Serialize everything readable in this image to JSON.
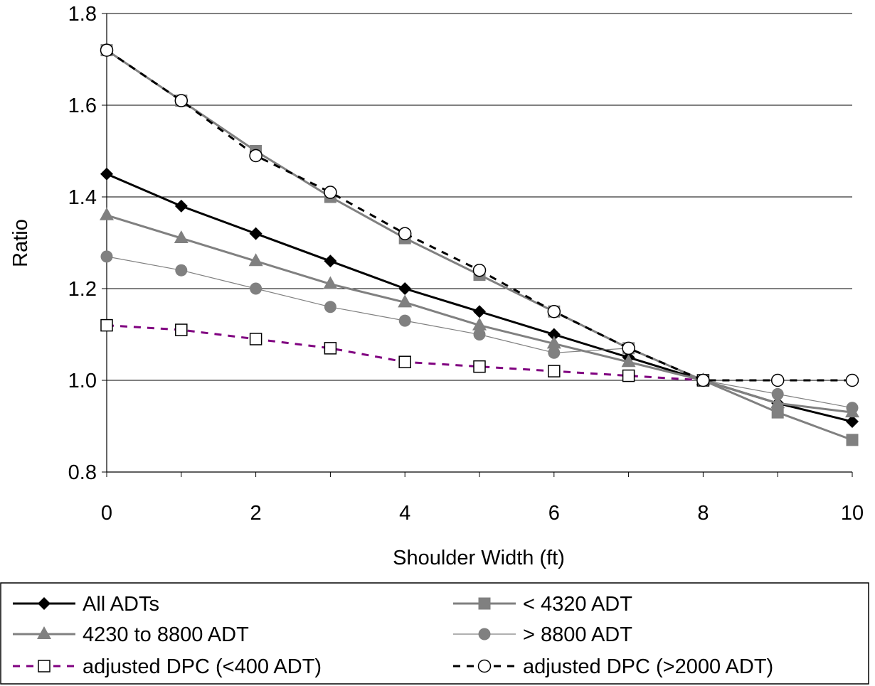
{
  "chart_data": {
    "type": "line",
    "xlabel": "Shoulder Width (ft)",
    "ylabel": "Ratio",
    "xlim": [
      0,
      10
    ],
    "ylim": [
      0.8,
      1.8
    ],
    "x_ticks": [
      "0",
      "2",
      "4",
      "6",
      "8",
      "10"
    ],
    "y_ticks": [
      "0.8",
      "1.0",
      "1.2",
      "1.4",
      "1.6",
      "1.8"
    ],
    "grid": "horizontal",
    "legend_position": "bottom",
    "series": [
      {
        "name": "All ADTs",
        "color": "#000000",
        "marker": "diamond",
        "line": "solid",
        "x": [
          0,
          1,
          2,
          3,
          4,
          5,
          6,
          7,
          8,
          9,
          10
        ],
        "values": [
          1.45,
          1.38,
          1.32,
          1.26,
          1.2,
          1.15,
          1.1,
          1.05,
          1.0,
          0.95,
          0.91
        ]
      },
      {
        "name": "< 4320 ADT",
        "color": "#808080",
        "marker": "square",
        "line": "solid",
        "x": [
          0,
          1,
          2,
          3,
          4,
          5,
          6,
          7,
          8,
          9,
          10
        ],
        "values": [
          1.72,
          1.61,
          1.5,
          1.4,
          1.31,
          1.23,
          1.15,
          1.07,
          1.0,
          0.93,
          0.87
        ]
      },
      {
        "name": "4230 to 8800 ADT",
        "color": "#808080",
        "marker": "triangle",
        "line": "solid",
        "x": [
          0,
          1,
          2,
          3,
          4,
          5,
          6,
          7,
          8,
          9,
          10
        ],
        "values": [
          1.36,
          1.31,
          1.26,
          1.21,
          1.17,
          1.12,
          1.08,
          1.04,
          1.0,
          0.95,
          0.93
        ]
      },
      {
        "name": "> 8800 ADT",
        "color": "#808080",
        "marker": "circle",
        "line": "thin",
        "x": [
          0,
          1,
          2,
          3,
          4,
          5,
          6,
          7,
          8,
          9,
          10
        ],
        "values": [
          1.27,
          1.24,
          1.2,
          1.16,
          1.13,
          1.1,
          1.06,
          1.07,
          1.0,
          0.97,
          0.94
        ]
      },
      {
        "name": "adjusted DPC (<400 ADT)",
        "color": "#800080",
        "marker": "open-square",
        "line": "dashed",
        "x": [
          0,
          1,
          2,
          3,
          4,
          5,
          6,
          7,
          8
        ],
        "values": [
          1.12,
          1.11,
          1.09,
          1.07,
          1.04,
          1.03,
          1.02,
          1.01,
          1.0
        ]
      },
      {
        "name": "adjusted DPC (>2000 ADT)",
        "color": "#000000",
        "marker": "open-circle",
        "line": "dashed",
        "x": [
          0,
          1,
          2,
          3,
          4,
          5,
          6,
          7,
          8,
          9,
          10
        ],
        "values": [
          1.72,
          1.61,
          1.49,
          1.41,
          1.32,
          1.24,
          1.15,
          1.07,
          1.0,
          1.0,
          1.0
        ]
      }
    ]
  }
}
